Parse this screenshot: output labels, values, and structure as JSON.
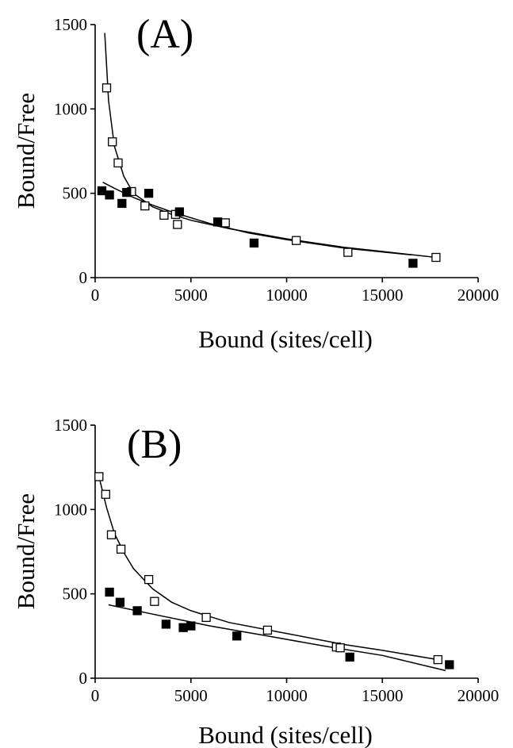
{
  "chart_data": [
    {
      "type": "scatter",
      "panel_label": "(A)",
      "xlabel": "Bound (sites/cell)",
      "ylabel": "Bound/Free",
      "xlim": [
        0,
        20000
      ],
      "ylim": [
        0,
        1500
      ],
      "x_ticks": [
        "0",
        "5000",
        "10000",
        "15000",
        "20000"
      ],
      "y_ticks": [
        "0",
        "500",
        "1000",
        "1500"
      ],
      "grid": false,
      "legend": "none",
      "series": [
        {
          "marker": "open-square",
          "points": [
            [
              600,
              1125
            ],
            [
              900,
              805
            ],
            [
              1200,
              680
            ],
            [
              1900,
              510
            ],
            [
              2600,
              425
            ],
            [
              3600,
              370
            ],
            [
              4200,
              375
            ],
            [
              4300,
              315
            ],
            [
              6800,
              325
            ],
            [
              10500,
              220
            ],
            [
              13200,
              150
            ],
            [
              17800,
              120
            ]
          ]
        },
        {
          "marker": "filled-square",
          "points": [
            [
              350,
              515
            ],
            [
              750,
              490
            ],
            [
              1400,
              440
            ],
            [
              1650,
              505
            ],
            [
              2800,
              500
            ],
            [
              4400,
              390
            ],
            [
              6400,
              330
            ],
            [
              8300,
              205
            ],
            [
              16600,
              85
            ]
          ]
        }
      ],
      "fit_curves": [
        {
          "for": "open-square",
          "points": [
            [
              500,
              1450
            ],
            [
              700,
              1050
            ],
            [
              1000,
              780
            ],
            [
              1500,
              600
            ],
            [
              2000,
              500
            ],
            [
              3000,
              420
            ],
            [
              4000,
              375
            ],
            [
              5000,
              340
            ],
            [
              7000,
              290
            ],
            [
              10000,
              230
            ],
            [
              13000,
              180
            ],
            [
              15000,
              155
            ],
            [
              17800,
              120
            ]
          ]
        },
        {
          "for": "filled-square",
          "points": [
            [
              400,
              565
            ],
            [
              1000,
              530
            ],
            [
              2000,
              475
            ],
            [
              3000,
              430
            ],
            [
              4000,
              390
            ],
            [
              6000,
              320
            ],
            [
              8000,
              265
            ],
            [
              10000,
              225
            ],
            [
              13000,
              175
            ],
            [
              16500,
              135
            ]
          ]
        }
      ]
    },
    {
      "type": "scatter",
      "panel_label": "(B)",
      "xlabel": "Bound (sites/cell)",
      "ylabel": "Bound/Free",
      "xlim": [
        0,
        20000
      ],
      "ylim": [
        0,
        1500
      ],
      "x_ticks": [
        "0",
        "5000",
        "10000",
        "15000",
        "20000"
      ],
      "y_ticks": [
        "0",
        "500",
        "1000",
        "1500"
      ],
      "grid": false,
      "legend": "none",
      "series": [
        {
          "marker": "open-square",
          "points": [
            [
              200,
              1195
            ],
            [
              550,
              1090
            ],
            [
              850,
              850
            ],
            [
              1350,
              765
            ],
            [
              2800,
              585
            ],
            [
              3100,
              455
            ],
            [
              5800,
              360
            ],
            [
              9000,
              285
            ],
            [
              12600,
              185
            ],
            [
              12800,
              180
            ],
            [
              17900,
              110
            ]
          ]
        },
        {
          "marker": "filled-square",
          "points": [
            [
              750,
              510
            ],
            [
              1300,
              450
            ],
            [
              2200,
              400
            ],
            [
              3700,
              320
            ],
            [
              4600,
              300
            ],
            [
              5000,
              310
            ],
            [
              7400,
              250
            ],
            [
              13300,
              125
            ],
            [
              18500,
              80
            ]
          ]
        }
      ],
      "fit_curves": [
        {
          "for": "open-square",
          "points": [
            [
              200,
              1195
            ],
            [
              600,
              1010
            ],
            [
              1000,
              860
            ],
            [
              1500,
              745
            ],
            [
              2000,
              650
            ],
            [
              3000,
              530
            ],
            [
              4000,
              450
            ],
            [
              5000,
              400
            ],
            [
              7000,
              330
            ],
            [
              10000,
              265
            ],
            [
              13000,
              200
            ],
            [
              15000,
              165
            ],
            [
              17900,
              110
            ]
          ]
        },
        {
          "for": "filled-square",
          "points": [
            [
              700,
              435
            ],
            [
              3000,
              380
            ],
            [
              6000,
              310
            ],
            [
              9000,
              250
            ],
            [
              12000,
              190
            ],
            [
              15000,
              135
            ],
            [
              18300,
              45
            ]
          ]
        }
      ]
    }
  ]
}
